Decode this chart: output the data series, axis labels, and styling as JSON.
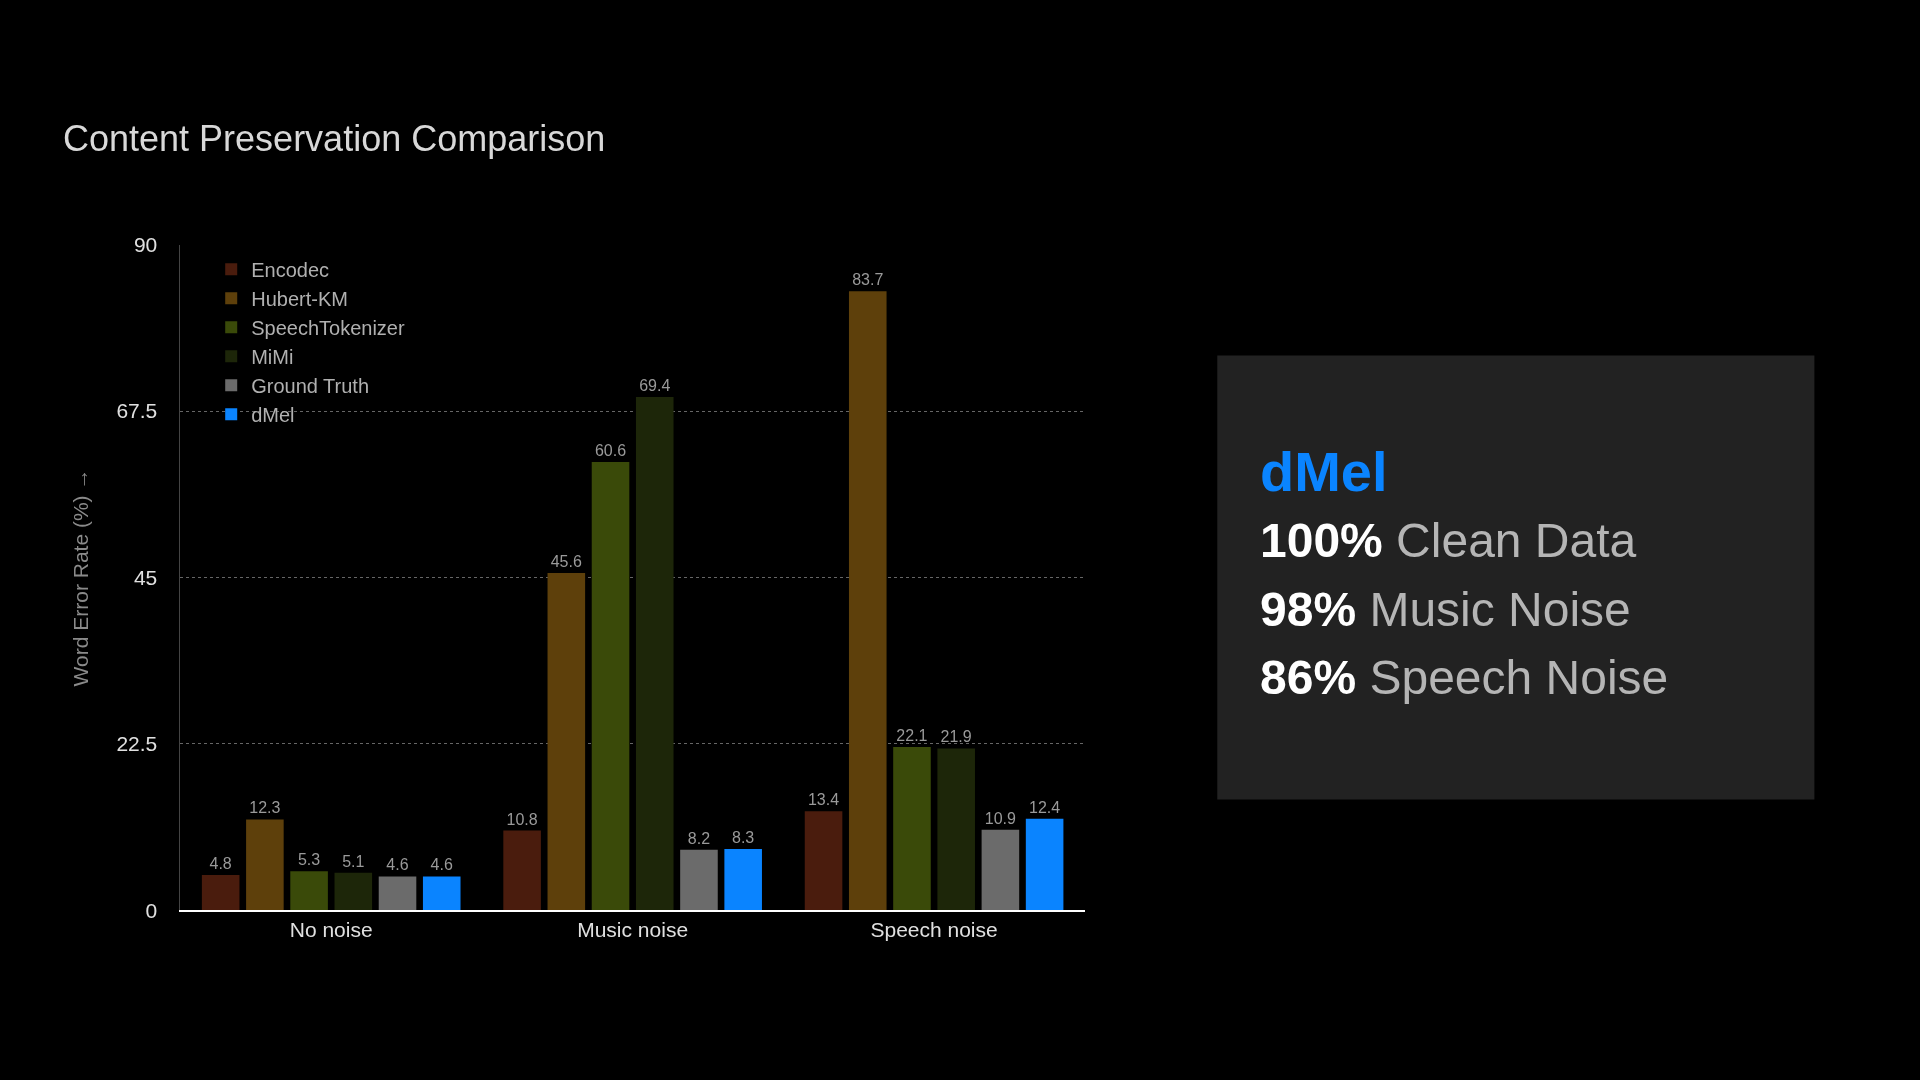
{
  "chart_data": [
    {
      "type": "bar",
      "title": "Content Preservation Comparison",
      "ylabel": "Word Error Rate (%) →",
      "categories": [
        "No noise",
        "Music noise",
        "Speech noise"
      ],
      "series": [
        {
          "name": "Encodec",
          "color": "#4a1c0d",
          "values": [
            4.8,
            10.8,
            13.4
          ]
        },
        {
          "name": "Hubert-KM",
          "color": "#5e400b",
          "values": [
            12.3,
            45.6,
            83.7
          ]
        },
        {
          "name": "SpeechTokenizer",
          "color": "#3a4a09",
          "values": [
            5.3,
            60.6,
            22.1
          ]
        },
        {
          "name": "MiMi",
          "color": "#1d2609",
          "values": [
            5.1,
            69.4,
            21.9
          ]
        },
        {
          "name": "Ground Truth",
          "color": "#6b6b6b",
          "values": [
            4.6,
            8.2,
            10.9
          ]
        },
        {
          "name": "dMel",
          "color": "#0a84ff",
          "values": [
            4.6,
            8.3,
            12.4
          ]
        }
      ],
      "ylim": [
        0,
        90
      ],
      "yticks": [
        0,
        22.5,
        45,
        67.5,
        90
      ],
      "grid": "y",
      "legend": "top left",
      "data_labels": true
    },
    {
      "type": "other",
      "title": "dMel",
      "annotations": [
        "100% Clean Data",
        "98% Music Noise",
        "86% Speech Noise"
      ]
    }
  ]
}
